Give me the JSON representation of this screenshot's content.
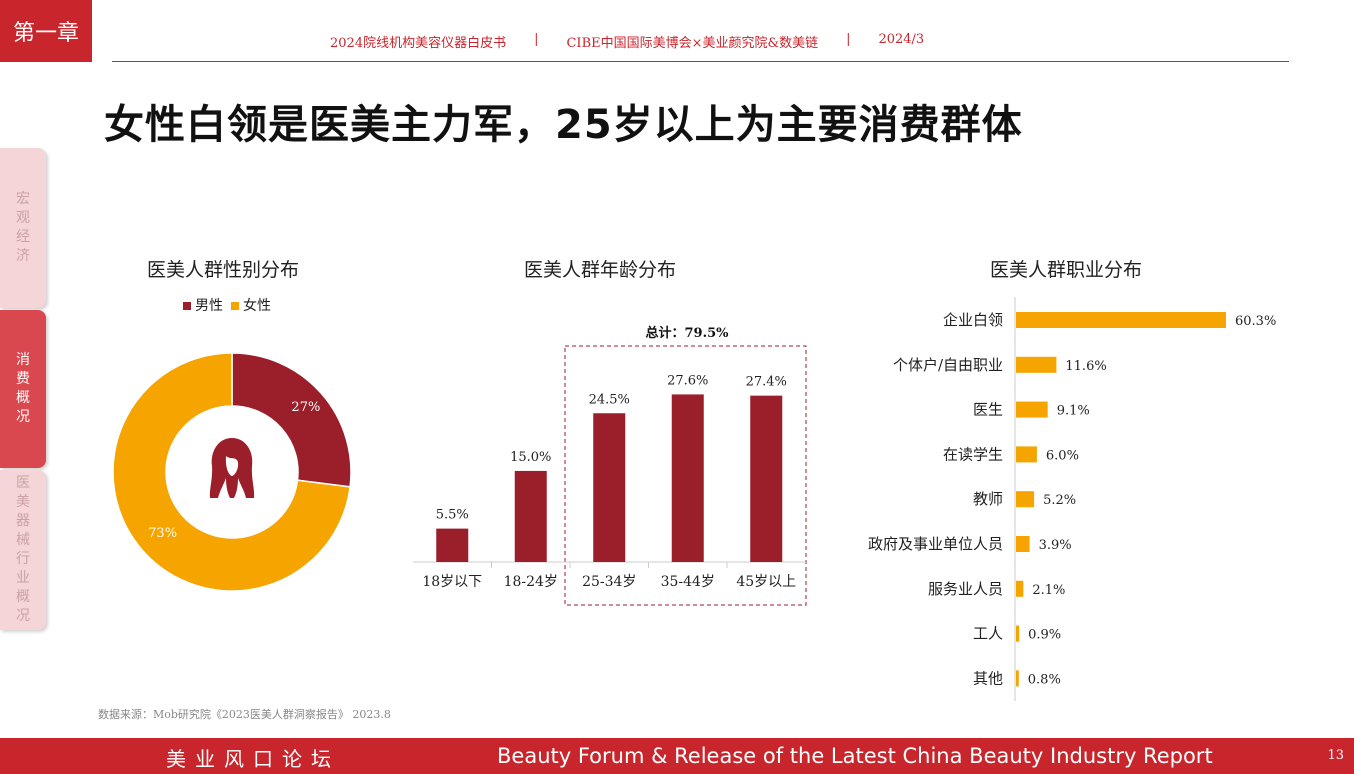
{
  "chapter": "第一章",
  "header": {
    "report": "2024院线机构美容仪器白皮书",
    "org": "CIBE中国国际美博会×美业颜究院&数美链",
    "date": "2024/3",
    "separator": "|"
  },
  "title": "女性白领是医美主力军，25岁以上为主要消费群体",
  "side_tabs": [
    {
      "chars": [
        "宏",
        "观",
        "经",
        "济"
      ],
      "active": false
    },
    {
      "chars": [
        "消",
        "费",
        "概",
        "况"
      ],
      "active": true
    },
    {
      "chars": [
        "医",
        "美",
        "器",
        "械",
        "行",
        "业",
        "概",
        "况"
      ],
      "active": false
    }
  ],
  "colors": {
    "red": "#9b1f2a",
    "orange": "#f5a400",
    "brand": "#c8252c"
  },
  "chart_data": [
    {
      "type": "pie",
      "title": "医美人群性别分布",
      "legend": [
        "男性",
        "女性"
      ],
      "labels": [
        "男性",
        "女性"
      ],
      "values": [
        27,
        73
      ],
      "value_labels": [
        "27%",
        "73%"
      ],
      "center_icon": "woman-silhouette-icon"
    },
    {
      "type": "bar",
      "title": "医美人群年龄分布",
      "categories": [
        "18岁以下",
        "18-24岁",
        "25-34岁",
        "35-44岁",
        "45岁以上"
      ],
      "values": [
        5.5,
        15.0,
        24.5,
        27.6,
        27.4
      ],
      "value_labels": [
        "5.5%",
        "15.0%",
        "24.5%",
        "27.6%",
        "27.4%"
      ],
      "annotation": "总计：79.5%",
      "highlight_range": [
        "25-34岁",
        "45岁以上"
      ]
    },
    {
      "type": "bar",
      "orientation": "horizontal",
      "title": "医美人群职业分布",
      "categories": [
        "企业白领",
        "个体户/自由职业",
        "医生",
        "在读学生",
        "教师",
        "政府及事业单位人员",
        "服务业人员",
        "工人",
        "其他"
      ],
      "values": [
        60.3,
        11.6,
        9.1,
        6.0,
        5.2,
        3.9,
        2.1,
        0.9,
        0.8
      ],
      "value_labels": [
        "60.3%",
        "11.6%",
        "9.1%",
        "6.0%",
        "5.2%",
        "3.9%",
        "2.1%",
        "0.9%",
        "0.8%"
      ]
    }
  ],
  "source": "数据来源：Mob研究院《2023医美人群洞察报告》 2023.8",
  "footer": {
    "cn": "美业风口论坛",
    "en": "Beauty Forum & Release of the Latest China Beauty Industry Report",
    "page": "13"
  }
}
